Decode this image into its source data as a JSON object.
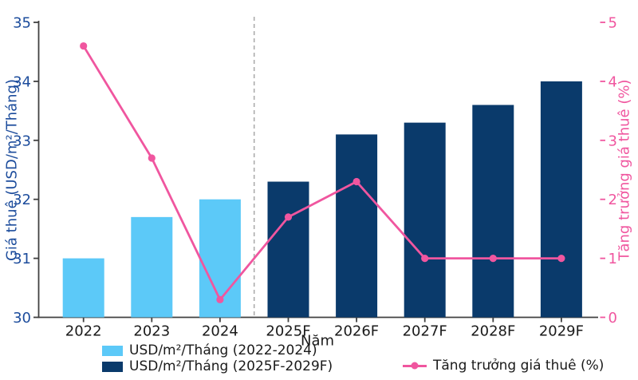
{
  "chart_data": {
    "type": "bar+line",
    "title": "",
    "categories": [
      "2022",
      "2023",
      "2024",
      "2025F",
      "2026F",
      "2027F",
      "2028F",
      "2029F"
    ],
    "series": [
      {
        "name": "USD/m²/Tháng (2022-2024)",
        "type": "bar",
        "axis": "left",
        "color": "#5cc9f8",
        "values": [
          31.0,
          31.7,
          32.0,
          null,
          null,
          null,
          null,
          null
        ]
      },
      {
        "name": "USD/m²/Tháng (2025F-2029F)",
        "type": "bar",
        "axis": "left",
        "color": "#0a3a6b",
        "values": [
          null,
          null,
          null,
          32.3,
          33.1,
          33.3,
          33.6,
          34.0
        ]
      },
      {
        "name": "Tăng trưởng giá thuê (%)",
        "type": "line",
        "axis": "right",
        "color": "#f0569f",
        "values": [
          4.6,
          2.7,
          0.3,
          1.7,
          2.3,
          1.0,
          1.0,
          1.0
        ]
      }
    ],
    "left_axis": {
      "label": "Giá thuê (USD/m²/Tháng)",
      "min": 30,
      "max": 35,
      "step": 1,
      "color": "#1c4c9c"
    },
    "right_axis": {
      "label": "Tăng trưởng giá thuê (%)",
      "min": 0,
      "max": 5,
      "step": 1,
      "color": "#f0569f"
    },
    "x_axis": {
      "label": "Năm",
      "tick_color": "#1a1a1a"
    },
    "divider_after_index": 2,
    "grid": false,
    "legend_position": "bottom",
    "spine_color": "#404040",
    "divider_color": "#a8a8a8"
  }
}
